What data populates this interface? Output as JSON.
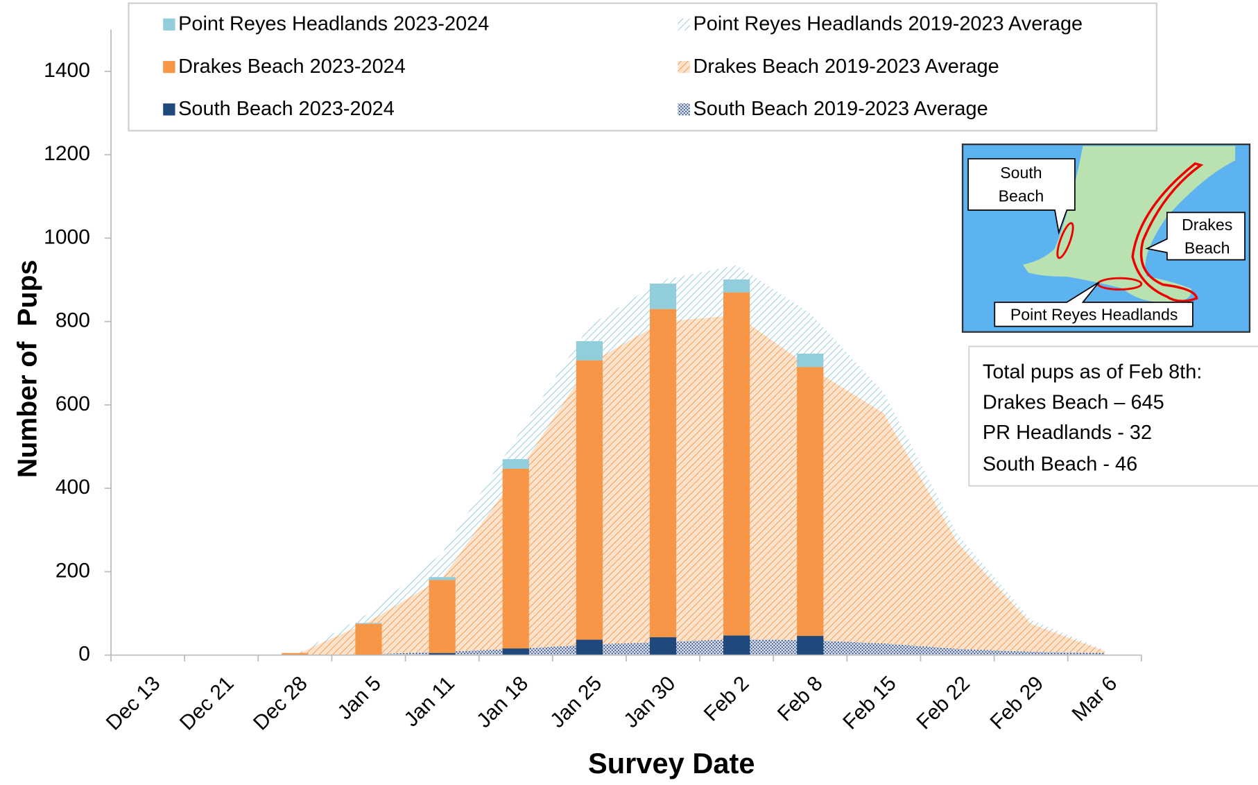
{
  "chart_data": {
    "type": "bar",
    "x_label": "Survey Date",
    "y_label": "Number of  Pups",
    "categories": [
      "Dec 13",
      "Dec 21",
      "Dec 28",
      "Jan 5",
      "Jan 11",
      "Jan 18",
      "Jan 25",
      "Jan 30",
      "Feb 2",
      "Feb 8",
      "Feb 15",
      "Feb 22",
      "Feb 29",
      "Mar 6"
    ],
    "ylim": [
      0,
      1500
    ],
    "yticks": [
      0,
      200,
      400,
      600,
      800,
      1000,
      1200,
      1400
    ],
    "series": [
      {
        "name": "Point Reyes Headlands 2023-2024",
        "type": "bar",
        "color": "#92cddc",
        "values": [
          0,
          0,
          0,
          2,
          7,
          23,
          46,
          61,
          31,
          32,
          null,
          null,
          null,
          null
        ]
      },
      {
        "name": "Point Reyes Headlands 2019-2023 Average",
        "type": "area",
        "pattern": "hatch",
        "color": "#7fc3d6",
        "values": [
          null,
          null,
          0,
          20,
          60,
          90,
          90,
          100,
          120,
          130,
          50,
          20,
          10,
          2
        ]
      },
      {
        "name": "Drakes Beach 2023-2024",
        "type": "bar",
        "color": "#f79646",
        "values": [
          0,
          0,
          5,
          75,
          175,
          431,
          670,
          787,
          823,
          645,
          null,
          null,
          null,
          null
        ]
      },
      {
        "name": "Drakes Beach 2019-2023 Average",
        "type": "area",
        "pattern": "hatch",
        "color": "#f79646",
        "values": [
          null,
          null,
          0,
          78,
          177,
          415,
          675,
          768,
          777,
          654,
          552,
          255,
          67,
          5
        ]
      },
      {
        "name": "South Beach 2023-2024",
        "type": "bar",
        "color": "#1f497d",
        "values": [
          0,
          0,
          0,
          0,
          5,
          16,
          37,
          43,
          47,
          46,
          null,
          null,
          null,
          null
        ]
      },
      {
        "name": "South Beach 2019-2023 Average",
        "type": "area",
        "pattern": "dots",
        "color": "#1f3f7a",
        "values": [
          null,
          null,
          0,
          2,
          8,
          15,
          25,
          32,
          38,
          36,
          28,
          15,
          8,
          5
        ]
      }
    ]
  },
  "note": {
    "lines": [
      "Total pups as of Feb 8th:",
      "Drakes Beach – 645",
      "PR Headlands - 32",
      "South Beach - 46"
    ]
  },
  "map": {
    "labels": [
      [
        "South",
        "Beach"
      ],
      [
        "Drakes",
        "Beach"
      ],
      [
        "Point Reyes Headlands"
      ]
    ]
  }
}
